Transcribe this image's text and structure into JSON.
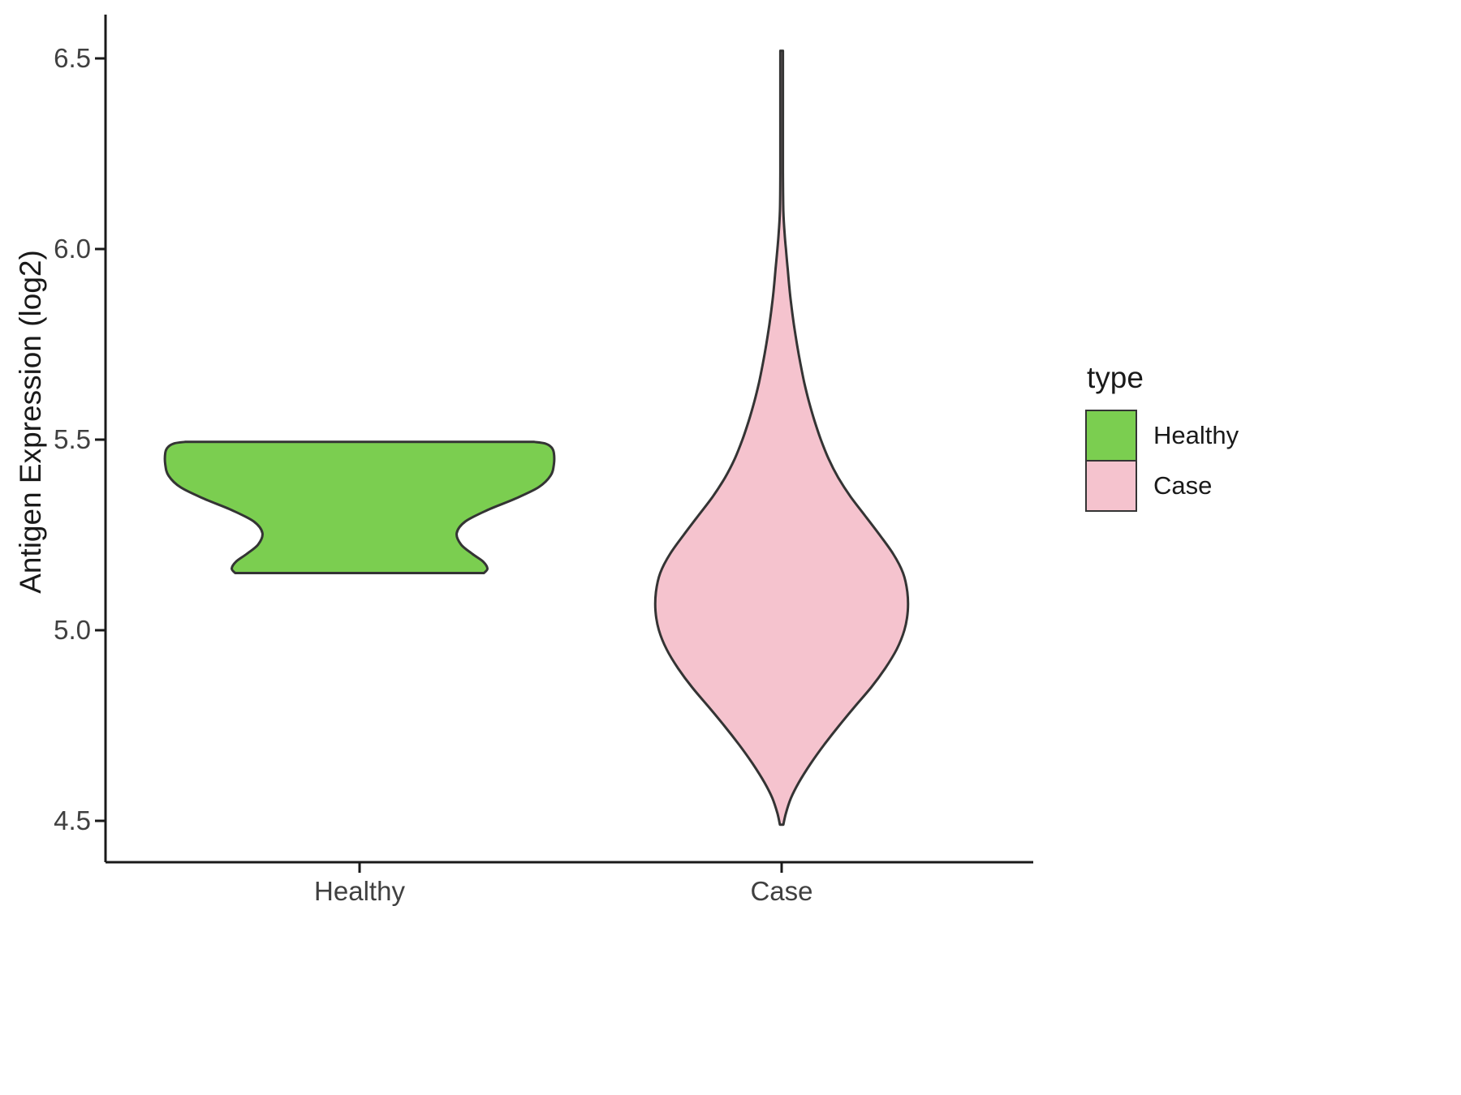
{
  "chart_data": {
    "type": "violin",
    "title": "",
    "ylabel": "Antigen Expression (log2)",
    "xlabel": "",
    "categories": [
      "Healthy",
      "Case"
    ],
    "ylim": [
      4.39,
      6.61
    ],
    "yticks": [
      6.5,
      6.0,
      5.5,
      5.0,
      4.5
    ],
    "ytick_labels": [
      "6.5",
      "6.0",
      "5.5",
      "5.0",
      "4.5"
    ],
    "grid": false,
    "background": "#FFFFFF",
    "axis_color": "#1A1A1A",
    "tick_text_color": "#404040",
    "outline_color": "#343434",
    "legend": {
      "title": "type",
      "position": "right",
      "entries": [
        {
          "label": "Healthy",
          "color": "#7BCE50"
        },
        {
          "label": "Case",
          "color": "#F5C3CE"
        }
      ]
    },
    "series": [
      {
        "name": "Healthy",
        "fill": "#7BCE50",
        "value_range": [
          5.15,
          5.49
        ],
        "profile": [
          [
            5.15,
            0.292
          ],
          [
            5.162,
            0.3
          ],
          [
            5.18,
            0.29
          ],
          [
            5.2,
            0.265
          ],
          [
            5.225,
            0.238
          ],
          [
            5.255,
            0.228
          ],
          [
            5.285,
            0.248
          ],
          [
            5.315,
            0.3
          ],
          [
            5.345,
            0.365
          ],
          [
            5.375,
            0.42
          ],
          [
            5.405,
            0.448
          ],
          [
            5.435,
            0.456
          ],
          [
            5.465,
            0.456
          ],
          [
            5.48,
            0.45
          ],
          [
            5.49,
            0.435
          ],
          [
            5.494,
            0.41
          ]
        ]
      },
      {
        "name": "Case",
        "fill": "#F5C3CE",
        "value_range": [
          4.49,
          6.52
        ],
        "profile": [
          [
            4.49,
            0.004
          ],
          [
            4.52,
            0.01
          ],
          [
            4.56,
            0.022
          ],
          [
            4.6,
            0.04
          ],
          [
            4.65,
            0.068
          ],
          [
            4.7,
            0.1
          ],
          [
            4.75,
            0.135
          ],
          [
            4.8,
            0.172
          ],
          [
            4.85,
            0.21
          ],
          [
            4.9,
            0.243
          ],
          [
            4.95,
            0.27
          ],
          [
            5.0,
            0.288
          ],
          [
            5.05,
            0.296
          ],
          [
            5.1,
            0.295
          ],
          [
            5.15,
            0.285
          ],
          [
            5.2,
            0.262
          ],
          [
            5.25,
            0.23
          ],
          [
            5.3,
            0.196
          ],
          [
            5.35,
            0.162
          ],
          [
            5.4,
            0.133
          ],
          [
            5.45,
            0.11
          ],
          [
            5.5,
            0.092
          ],
          [
            5.55,
            0.077
          ],
          [
            5.6,
            0.064
          ],
          [
            5.65,
            0.053
          ],
          [
            5.7,
            0.044
          ],
          [
            5.75,
            0.036
          ],
          [
            5.8,
            0.029
          ],
          [
            5.85,
            0.023
          ],
          [
            5.9,
            0.018
          ],
          [
            5.95,
            0.014
          ],
          [
            6.0,
            0.01
          ],
          [
            6.04,
            0.007
          ],
          [
            6.1,
            0.004
          ],
          [
            6.2,
            0.003
          ],
          [
            6.35,
            0.003
          ],
          [
            6.52,
            0.003
          ]
        ]
      }
    ]
  }
}
